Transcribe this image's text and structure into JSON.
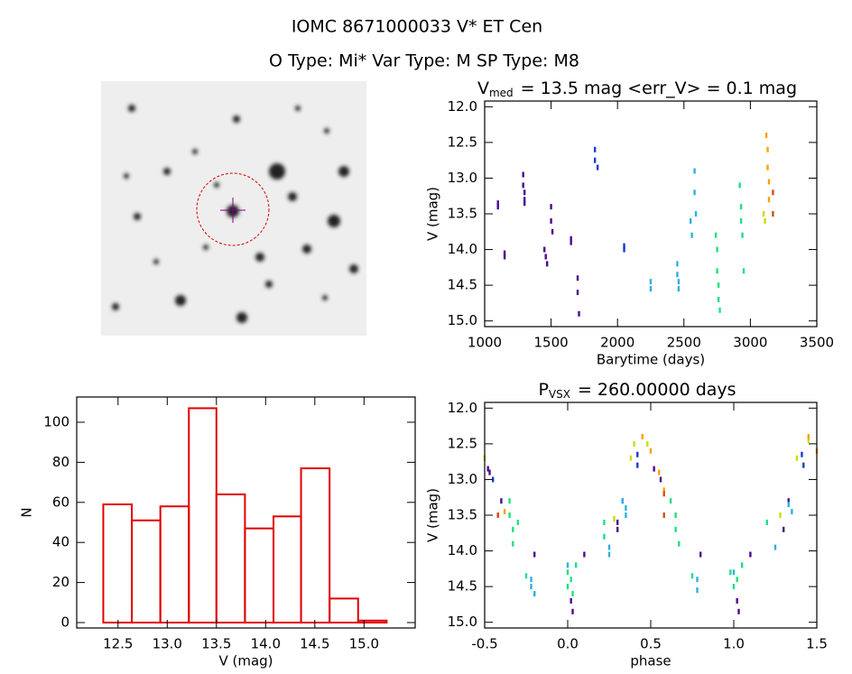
{
  "header": {
    "title": "IOMC 8671000033   V* ET Cen",
    "subtitle": "O Type: Mi*  Var Type: M  SP Type: M8"
  },
  "chart_data": [
    {
      "type": "scatter",
      "title": {
        "main": "V",
        "sub": "med",
        "rest": "= 13.5 mag <err_V> = 0.1 mag"
      },
      "xlabel": "Barytime (days)",
      "ylabel": "V (mag)",
      "xlim": [
        1000,
        3500
      ],
      "xticks": [
        1000,
        1500,
        2000,
        2500,
        3000,
        3500
      ],
      "ylim": [
        15.08,
        11.92
      ],
      "yticks": [
        {
          "value": 12,
          "label": "12.0"
        },
        12.5,
        {
          "value": 13,
          "label": "13.0"
        },
        13.5,
        {
          "value": 14,
          "label": "14.0"
        },
        14.5,
        {
          "value": 15,
          "label": "15.0"
        }
      ],
      "series": [
        {
          "color": "#4b0c8c",
          "x": [
            1100,
            1100,
            1150,
            1150,
            1290,
            1290,
            1300,
            1300,
            1300,
            1450,
            1460,
            1470,
            1500,
            1500,
            1510,
            1650,
            1650,
            1700,
            1700,
            1710
          ],
          "values": [
            13.35,
            13.4,
            14.05,
            14.1,
            12.95,
            13.1,
            13.2,
            13.3,
            13.35,
            14.0,
            14.1,
            14.2,
            13.4,
            13.6,
            13.75,
            13.85,
            13.9,
            14.4,
            14.6,
            14.9
          ]
        },
        {
          "color": "#1a3ccc",
          "x": [
            1830,
            1830,
            1850,
            2050,
            2050
          ],
          "values": [
            12.6,
            12.75,
            12.85,
            13.95,
            14.0
          ]
        },
        {
          "color": "#30b0e0",
          "x": [
            2250,
            2250,
            2450,
            2450,
            2460,
            2460,
            2550,
            2560,
            2580,
            2580,
            2590
          ],
          "values": [
            14.45,
            14.55,
            14.2,
            14.35,
            14.45,
            14.55,
            13.6,
            13.8,
            12.9,
            13.2,
            13.5
          ]
        },
        {
          "color": "#20e080",
          "x": [
            2740,
            2750,
            2750,
            2760,
            2760,
            2770,
            2920,
            2930,
            2930,
            2940,
            2950
          ],
          "values": [
            13.8,
            14.0,
            14.3,
            14.5,
            14.7,
            14.85,
            13.1,
            13.4,
            13.6,
            13.8,
            14.3
          ]
        },
        {
          "color": "#c8e000",
          "x": [
            3100,
            3110
          ],
          "values": [
            13.5,
            13.6
          ]
        },
        {
          "color": "#ffa000",
          "x": [
            3120,
            3130,
            3130,
            3140,
            3140
          ],
          "values": [
            12.4,
            12.6,
            12.85,
            13.05,
            13.3
          ]
        },
        {
          "color": "#d05018",
          "x": [
            3170,
            3170
          ],
          "values": [
            13.2,
            13.5
          ]
        }
      ]
    },
    {
      "type": "histogram",
      "xlabel": "V (mag)",
      "ylabel": "N",
      "color": "#e00000",
      "bins": [
        12.35,
        12.64,
        12.93,
        13.22,
        13.5,
        13.79,
        14.08,
        14.36,
        14.65,
        14.94,
        15.23
      ],
      "values": [
        59,
        51,
        58,
        107,
        64,
        47,
        53,
        77,
        12,
        1
      ],
      "xlim": [
        12.08,
        15.52
      ],
      "xticks": [
        12.5,
        {
          "value": 13,
          "label": "13.0"
        },
        13.5,
        {
          "value": 14,
          "label": "14.0"
        },
        14.5,
        {
          "value": 15,
          "label": "15.0"
        }
      ],
      "ylim": [
        -2.7,
        112.6
      ],
      "yticks": [
        0,
        20,
        40,
        60,
        80,
        100
      ]
    },
    {
      "type": "scatter",
      "title": {
        "main": "P",
        "sub": "VSX",
        "rest": "= 260.00000 days"
      },
      "xlabel": "phase",
      "ylabel": "V (mag)",
      "xlim": [
        -0.5,
        1.5
      ],
      "xticks": [
        {
          "value": -0.5,
          "label": "-0.5"
        },
        {
          "value": 0,
          "label": "0.0"
        },
        0.5,
        {
          "value": 1,
          "label": "1.0"
        },
        1.5
      ],
      "ylim": [
        15.08,
        11.92
      ],
      "yticks": [
        {
          "value": 12,
          "label": "12.0"
        },
        12.5,
        {
          "value": 13,
          "label": "13.0"
        },
        13.5,
        {
          "value": 14,
          "label": "14.0"
        },
        14.5,
        {
          "value": 15,
          "label": "15.0"
        }
      ],
      "series": [
        {
          "color": "#4b0c8c",
          "x": [
            -0.48,
            -0.47,
            -0.4,
            -0.2,
            0.02,
            0.03,
            0.1,
            0.3,
            0.3,
            0.52,
            0.56,
            0.8,
            1.02,
            1.03,
            1.1,
            1.3,
            1.33
          ],
          "values": [
            12.85,
            12.9,
            13.3,
            14.05,
            14.7,
            14.85,
            14.05,
            13.7,
            13.6,
            12.85,
            13.0,
            14.05,
            14.7,
            14.85,
            14.05,
            13.7,
            13.3
          ]
        },
        {
          "color": "#1a3ccc",
          "x": [
            -0.45,
            0.33,
            0.42,
            0.42,
            1.41,
            1.42
          ],
          "values": [
            13.0,
            13.3,
            12.65,
            12.8,
            12.65,
            12.8
          ]
        },
        {
          "color": "#30b0e0",
          "x": [
            -0.22,
            -0.22,
            -0.2,
            0.0,
            0.25,
            0.25,
            0.33,
            0.35,
            0.35,
            0.78,
            0.78,
            1.0,
            1.25,
            1.33,
            1.35
          ],
          "values": [
            14.4,
            14.5,
            14.6,
            14.2,
            13.95,
            14.05,
            13.3,
            13.4,
            13.5,
            14.4,
            14.55,
            14.3,
            13.95,
            13.35,
            13.45
          ]
        },
        {
          "color": "#20e080",
          "x": [
            -0.35,
            -0.35,
            -0.33,
            -0.33,
            -0.3,
            -0.25,
            0.0,
            0.0,
            0.02,
            0.03,
            0.05,
            0.22,
            0.22,
            0.62,
            0.65,
            0.65,
            0.67,
            0.75,
            0.98,
            1.0,
            1.02,
            1.05,
            1.2
          ],
          "values": [
            13.3,
            13.5,
            13.7,
            13.9,
            13.6,
            14.35,
            14.3,
            14.5,
            14.4,
            14.6,
            14.2,
            13.6,
            13.8,
            13.3,
            13.5,
            13.7,
            13.9,
            14.35,
            14.3,
            14.5,
            14.4,
            14.2,
            13.6
          ]
        },
        {
          "color": "#c8e000",
          "x": [
            -0.5,
            0.28,
            0.38,
            0.4,
            0.48,
            1.28,
            1.38,
            1.45
          ],
          "values": [
            12.7,
            13.55,
            12.7,
            12.5,
            12.5,
            13.5,
            12.7,
            12.45
          ]
        },
        {
          "color": "#ffa000",
          "x": [
            -0.42,
            -0.38,
            0.45,
            0.5,
            0.55,
            0.58,
            1.45,
            1.5
          ],
          "values": [
            13.5,
            13.45,
            12.4,
            12.6,
            12.9,
            13.15,
            12.4,
            12.6
          ]
        },
        {
          "color": "#d05018",
          "x": [
            -0.42,
            0.58,
            0.58
          ],
          "values": [
            13.5,
            13.5,
            13.2
          ]
        }
      ]
    }
  ]
}
